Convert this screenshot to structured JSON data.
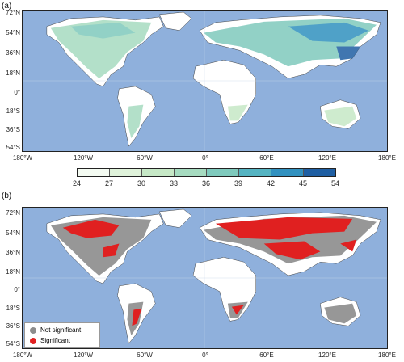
{
  "panels": [
    {
      "label": "(a)"
    },
    {
      "label": "(b)"
    }
  ],
  "lat_labels": [
    "72°N",
    "54°N",
    "36°N",
    "18°N",
    "0°",
    "18°S",
    "36°S",
    "54°S"
  ],
  "lon_labels": [
    "180°W",
    "120°W",
    "60°W",
    "0°",
    "60°E",
    "120°E",
    "180°E"
  ],
  "colorbar": {
    "ticks": [
      "24",
      "27",
      "30",
      "33",
      "36",
      "39",
      "42",
      "45",
      "54"
    ],
    "colors": [
      "#f4fbf2",
      "#dff2da",
      "#c6e8c6",
      "#a6dbc0",
      "#7fcabd",
      "#55b4c2",
      "#3191bf",
      "#1f5fa3"
    ]
  },
  "legend": {
    "items": [
      {
        "label": "Not significant",
        "color": "#8c8c8c"
      },
      {
        "label": "Significant",
        "color": "#e02020"
      }
    ]
  },
  "colors": {
    "ocean": "#8fb0dc",
    "land_nodata": "#ffffff",
    "border": "#555555"
  }
}
